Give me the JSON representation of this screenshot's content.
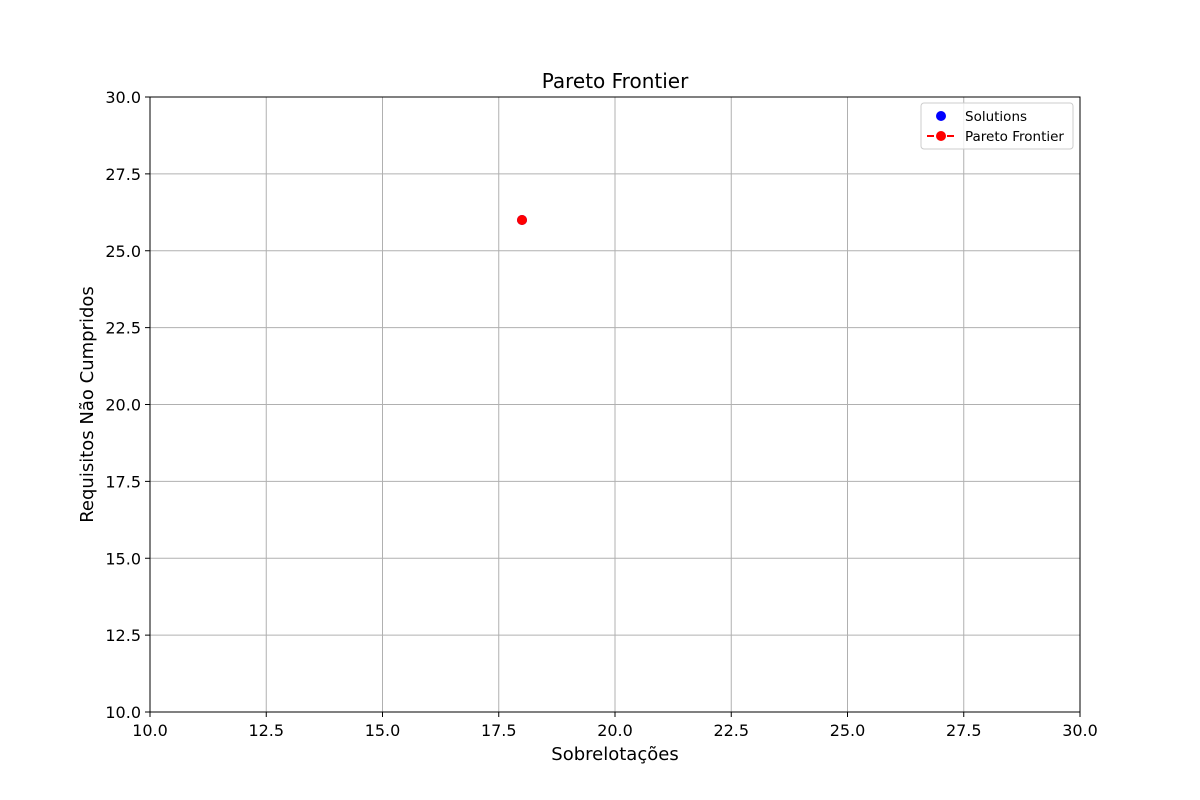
{
  "chart_data": {
    "type": "scatter",
    "title": "Pareto Frontier",
    "xlabel": "Sobrelotações",
    "ylabel": "Requisitos Não Cumpridos",
    "xlim": [
      10.0,
      30.0
    ],
    "ylim": [
      10.0,
      30.0
    ],
    "xticks": [
      "10.0",
      "12.5",
      "15.0",
      "17.5",
      "20.0",
      "22.5",
      "25.0",
      "27.5",
      "30.0"
    ],
    "yticks": [
      "10.0",
      "12.5",
      "15.0",
      "17.5",
      "20.0",
      "22.5",
      "25.0",
      "27.5",
      "30.0"
    ],
    "grid": true,
    "legend_position": "top-right",
    "series": [
      {
        "name": "Solutions",
        "style": "scatter",
        "color": "#0000ff",
        "x": [
          18
        ],
        "y": [
          26
        ]
      },
      {
        "name": "Pareto Frontier",
        "style": "dashed-line-with-markers",
        "color": "#ff0000",
        "x": [
          18
        ],
        "y": [
          26
        ]
      }
    ]
  }
}
